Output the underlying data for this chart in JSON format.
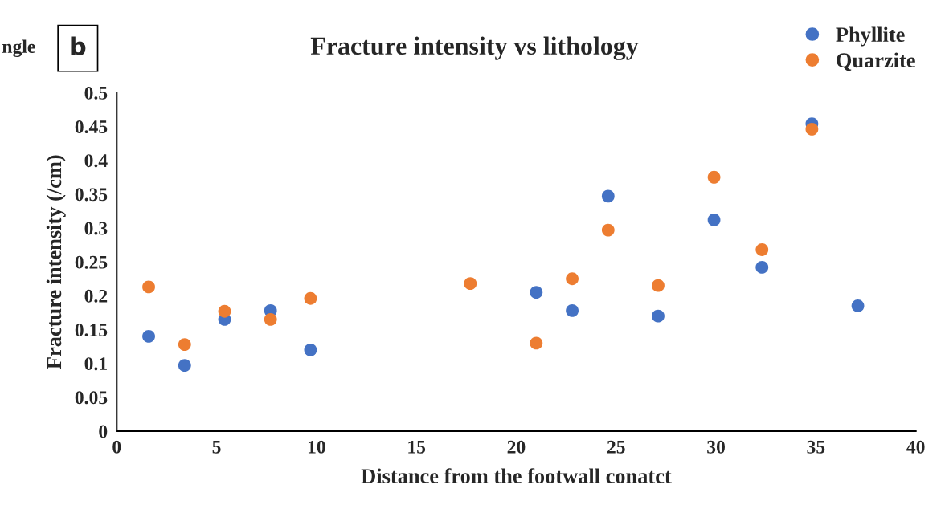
{
  "chart_data": {
    "type": "scatter",
    "title": "Fracture intensity vs lithology",
    "xlabel": "Distance from the footwall conatct",
    "ylabel": "Fracture intensity (/cm)",
    "annotations": [
      "b",
      "ngle"
    ],
    "series": [
      {
        "name": "Phyllite",
        "color": "#4472c4",
        "x": [
          1.6,
          3.4,
          5.4,
          7.7,
          9.7,
          21.0,
          22.8,
          24.6,
          27.1,
          29.9,
          32.3,
          34.8,
          37.1
        ],
        "values": [
          0.14,
          0.097,
          0.165,
          0.178,
          0.12,
          0.205,
          0.178,
          0.347,
          0.17,
          0.312,
          0.242,
          0.454,
          0.185
        ]
      },
      {
        "name": "Quarzite",
        "color": "#ed7d31",
        "x": [
          1.6,
          3.4,
          5.4,
          7.7,
          9.7,
          17.7,
          21.0,
          22.8,
          24.6,
          27.1,
          29.9,
          32.3,
          34.8
        ],
        "values": [
          0.213,
          0.128,
          0.177,
          0.165,
          0.196,
          0.218,
          0.13,
          0.225,
          0.297,
          0.215,
          0.375,
          0.268,
          0.446
        ]
      }
    ],
    "xlim": [
      0,
      40
    ],
    "xticks": [
      0,
      5,
      10,
      15,
      20,
      25,
      30,
      35,
      40
    ],
    "ylim": [
      0,
      0.5
    ],
    "yticks": [
      0,
      0.05,
      0.1,
      0.15,
      0.2,
      0.25,
      0.3,
      0.35,
      0.4,
      0.45,
      0.5
    ],
    "grid": false,
    "legend": "top right",
    "marker": "circle"
  }
}
